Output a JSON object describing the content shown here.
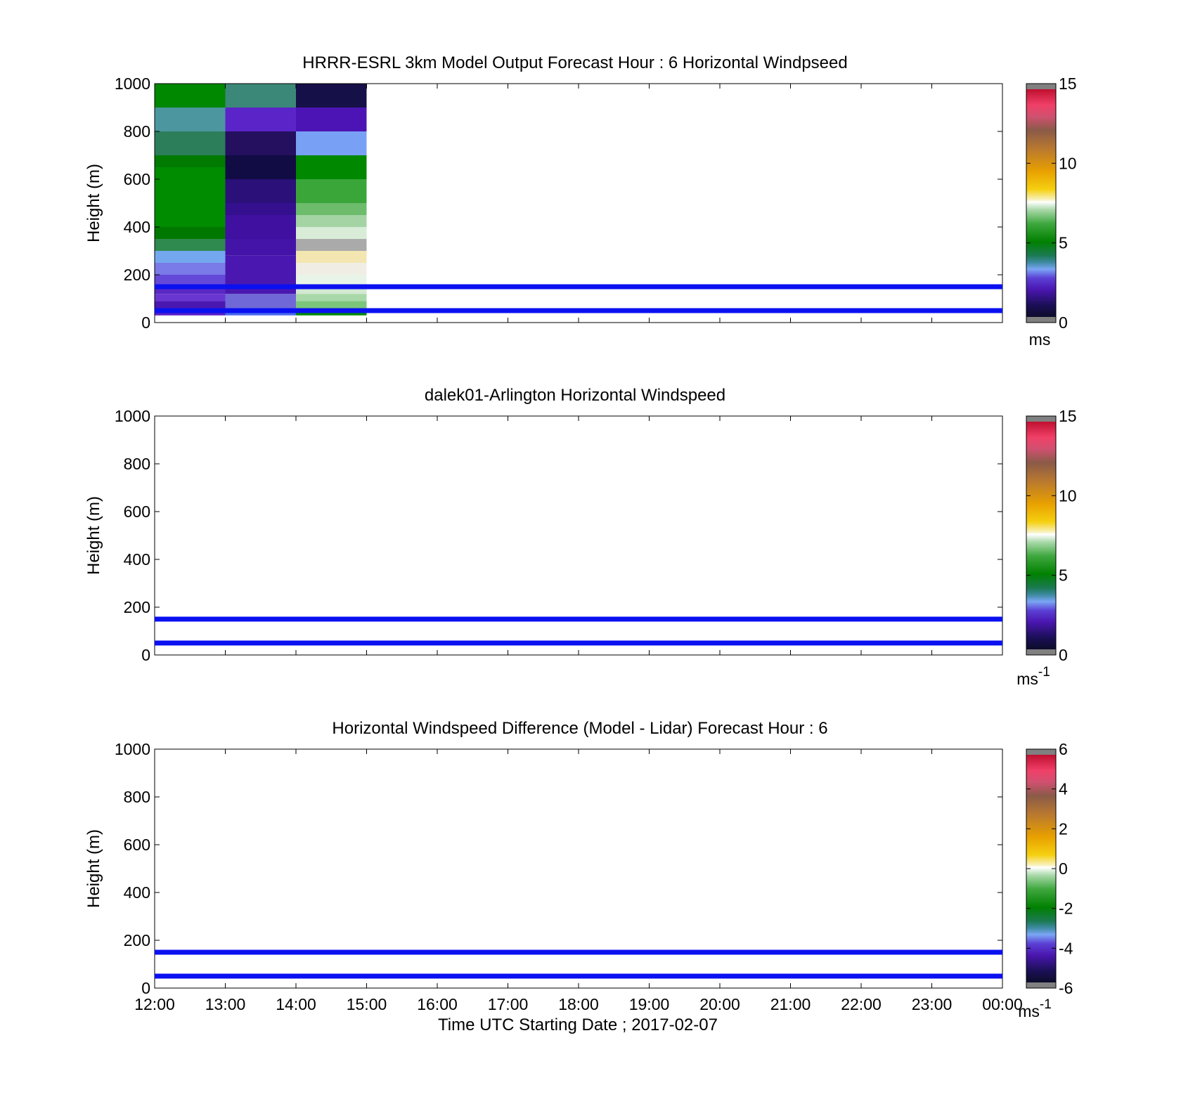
{
  "figure": {
    "xlabel": "Time UTC  Starting Date ; 2017-02-07",
    "x_tick_labels": [
      "12:00",
      "13:00",
      "14:00",
      "15:00",
      "16:00",
      "17:00",
      "18:00",
      "19:00",
      "20:00",
      "21:00",
      "22:00",
      "23:00",
      "00:00"
    ],
    "reference_line_color": "#0a10f0",
    "reference_heights_m": [
      150,
      50
    ]
  },
  "chart_data": [
    {
      "type": "heatmap",
      "title": "HRRR-ESRL 3km Model Output   Forecast Hour : 6 Horizontal Windpseed",
      "ylabel": "Height (m)",
      "ylim": [
        0,
        1000
      ],
      "y_ticks": [
        0,
        200,
        400,
        600,
        800,
        1000
      ],
      "x_hours": [
        0,
        12
      ],
      "colorbar": {
        "ticks": [
          0,
          5,
          10,
          15
        ],
        "range": [
          0,
          15
        ],
        "unit": "ms",
        "unit_sup": ""
      },
      "cells": [
        {
          "col": 0,
          "segments": [
            [
              30,
              60,
              "#5a1ec8"
            ],
            [
              60,
              90,
              "#4a18b0"
            ],
            [
              90,
              120,
              "#6a36d2"
            ],
            [
              120,
              150,
              "#5a28c4"
            ],
            [
              150,
              200,
              "#6448d8"
            ],
            [
              200,
              250,
              "#7a7ae8"
            ],
            [
              250,
              300,
              "#74a8ee"
            ],
            [
              300,
              350,
              "#2e8a4e"
            ],
            [
              350,
              400,
              "#007800"
            ],
            [
              400,
              650,
              "#008c00"
            ],
            [
              650,
              700,
              "#007a00"
            ],
            [
              700,
              800,
              "#2c7e5a"
            ],
            [
              800,
              900,
              "#4c979f"
            ],
            [
              900,
              1000,
              "#008800"
            ]
          ]
        },
        {
          "col": 1,
          "segments": [
            [
              30,
              60,
              "#4c6cf0"
            ],
            [
              60,
              120,
              "#7068d6"
            ],
            [
              120,
              280,
              "#4a18b0"
            ],
            [
              280,
              350,
              "#4414a8"
            ],
            [
              350,
              450,
              "#4010a0"
            ],
            [
              450,
              500,
              "#34108e"
            ],
            [
              500,
              600,
              "#2a1078"
            ],
            [
              600,
              700,
              "#120c44"
            ],
            [
              700,
              800,
              "#24105e"
            ],
            [
              800,
              900,
              "#5a24c8"
            ],
            [
              900,
              1000,
              "#3c8878"
            ]
          ]
        },
        {
          "col": 2,
          "segments": [
            [
              30,
              60,
              "#008c00"
            ],
            [
              60,
              90,
              "#7cc67c"
            ],
            [
              90,
              120,
              "#a8d8a8"
            ],
            [
              120,
              150,
              "#d2e8d2"
            ],
            [
              150,
              200,
              "#e8f4e8"
            ],
            [
              200,
              250,
              "#f0eee4"
            ],
            [
              250,
              300,
              "#f4e6b0"
            ],
            [
              300,
              350,
              "#aaaaaa"
            ],
            [
              350,
              400,
              "#d8ecd8"
            ],
            [
              400,
              450,
              "#a4d4a4"
            ],
            [
              450,
              500,
              "#6cbc6c"
            ],
            [
              500,
              600,
              "#3aa63a"
            ],
            [
              600,
              700,
              "#008800"
            ],
            [
              700,
              800,
              "#78a0f4"
            ],
            [
              800,
              900,
              "#4c14b4"
            ],
            [
              900,
              1000,
              "#161048"
            ]
          ]
        }
      ]
    },
    {
      "type": "heatmap",
      "title": "dalek01-Arlington  Horizontal Windspeed",
      "ylabel": "Height (m)",
      "ylim": [
        0,
        1000
      ],
      "y_ticks": [
        0,
        200,
        400,
        600,
        800,
        1000
      ],
      "x_hours": [
        0,
        12
      ],
      "colorbar": {
        "ticks": [
          0,
          5,
          10,
          15
        ],
        "range": [
          0,
          15
        ],
        "unit": "ms",
        "unit_sup": "-1"
      },
      "cells": []
    },
    {
      "type": "heatmap",
      "title": "Horizontal Windspeed Difference (Model - Lidar) Forecast Hour : 6",
      "ylabel": "Height (m)",
      "ylim": [
        0,
        1000
      ],
      "y_ticks": [
        0,
        200,
        400,
        600,
        800,
        1000
      ],
      "x_hours": [
        0,
        12
      ],
      "colorbar": {
        "ticks": [
          -6,
          -4,
          -2,
          0,
          2,
          4,
          6
        ],
        "range": [
          -6,
          6
        ],
        "unit": "ms",
        "unit_sup": "-1"
      },
      "cells": []
    }
  ]
}
